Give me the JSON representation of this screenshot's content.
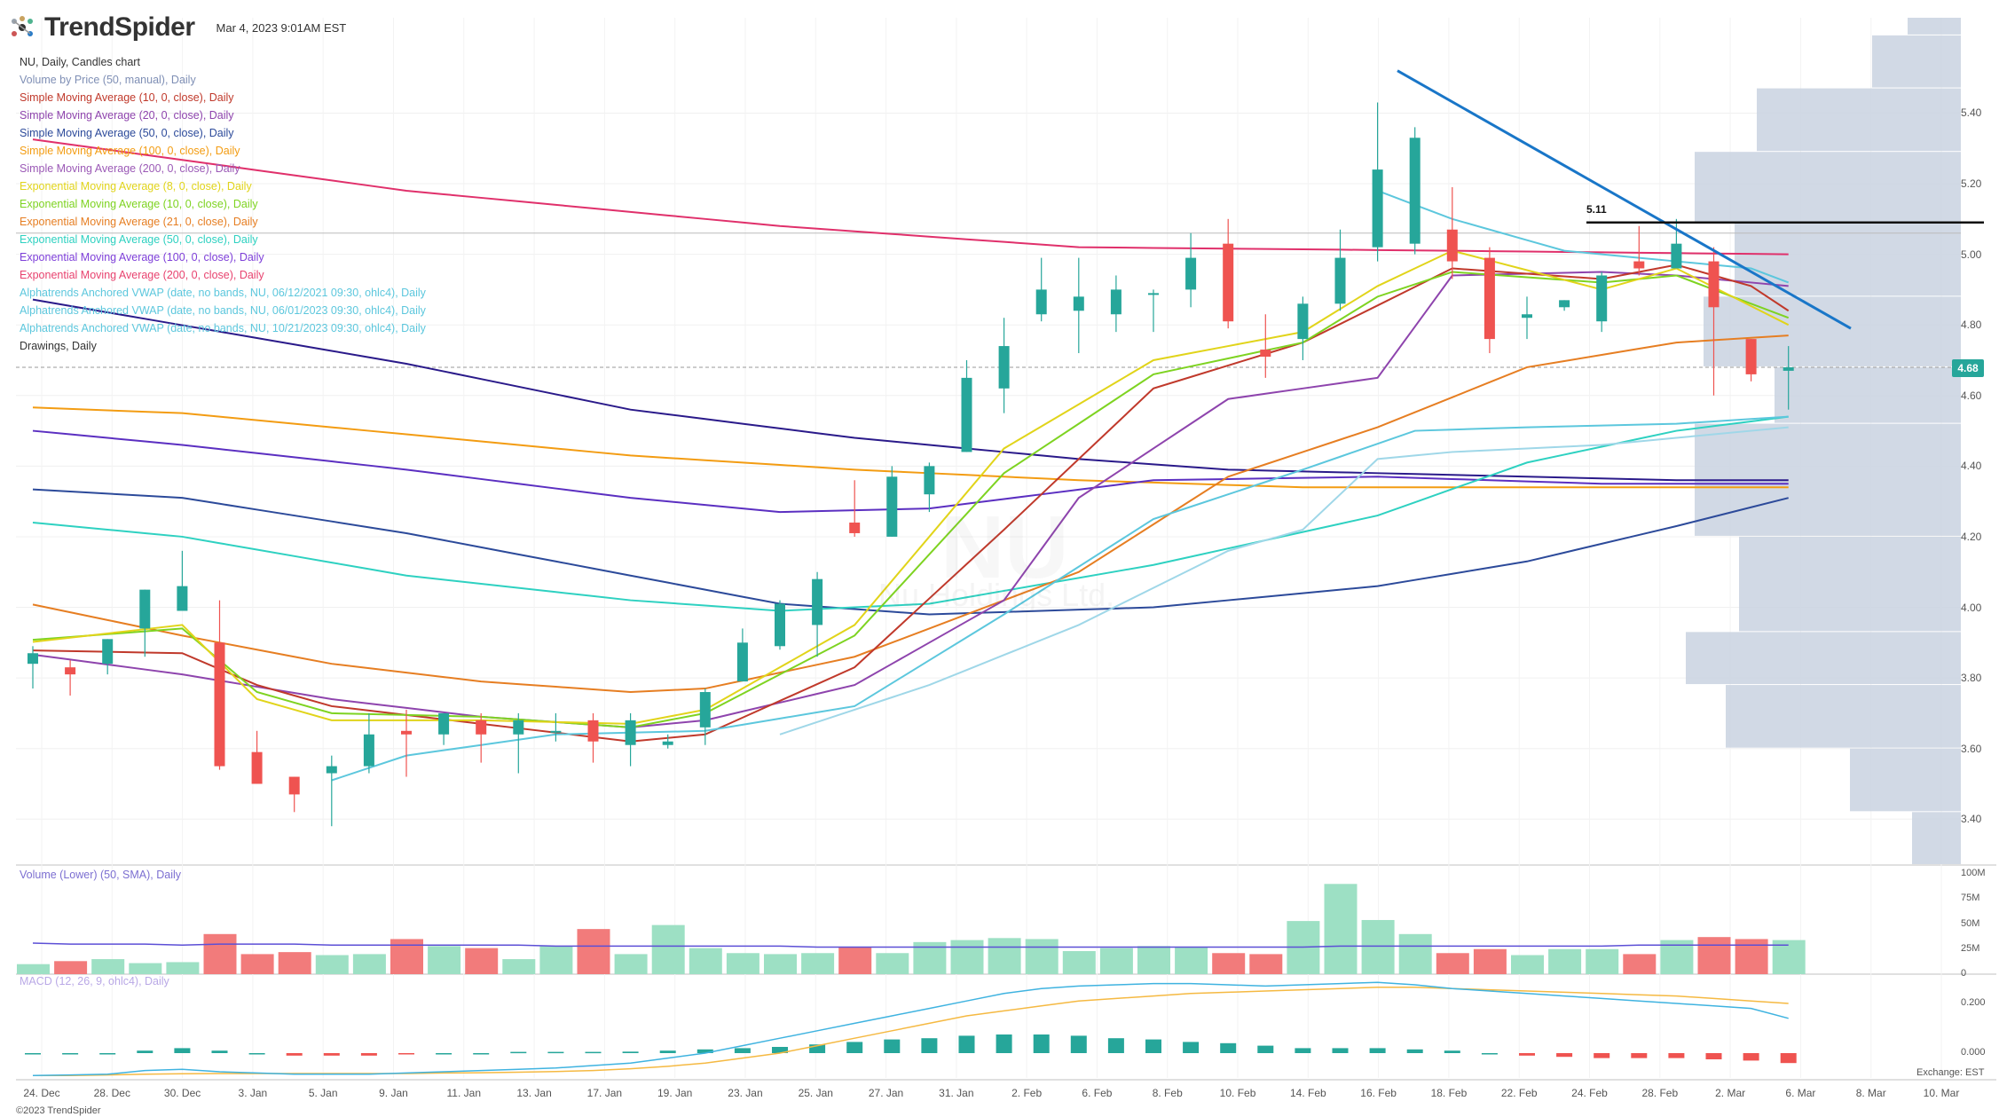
{
  "header": {
    "brand": "TrendSpider",
    "date": "Mar 4, 2023 9:01AM EST"
  },
  "legend": [
    {
      "label": "NU, Daily, Candles chart",
      "color": "#333333"
    },
    {
      "label": "Volume by Price (50, manual), Daily",
      "color": "#7f8fb5"
    },
    {
      "label": "Simple Moving Average (10, 0, close), Daily",
      "color": "#c0392b"
    },
    {
      "label": "Simple Moving Average (20, 0, close), Daily",
      "color": "#8e44ad"
    },
    {
      "label": "Simple Moving Average (50, 0, close), Daily",
      "color": "#2c4a9a"
    },
    {
      "label": "Simple Moving Average (100, 0, close), Daily",
      "color": "#f39c12"
    },
    {
      "label": "Simple Moving Average (200, 0, close), Daily",
      "color": "#9b59b6"
    },
    {
      "label": "Exponential Moving Average (8, 0, close), Daily",
      "color": "#e1d41a"
    },
    {
      "label": "Exponential Moving Average (10, 0, close), Daily",
      "color": "#7ed321"
    },
    {
      "label": "Exponential Moving Average (21, 0, close), Daily",
      "color": "#e67e22"
    },
    {
      "label": "Exponential Moving Average (50, 0, close), Daily",
      "color": "#2ed1c1"
    },
    {
      "label": "Exponential Moving Average (100, 0, close), Daily",
      "color": "#7e3fd9"
    },
    {
      "label": "Exponential Moving Average (200, 0, close), Daily",
      "color": "#e8436f"
    },
    {
      "label": "Alphatrends Anchored VWAP (date, no bands, NU, 06/12/2021 09:30, ohlc4), Daily",
      "color": "#5cc7dd"
    },
    {
      "label": "Alphatrends Anchored VWAP (date, no bands, NU, 06/01/2023 09:30, ohlc4), Daily",
      "color": "#5cc7dd"
    },
    {
      "label": "Alphatrends Anchored VWAP (date, no bands, NU, 10/21/2023 09:30, ohlc4), Daily",
      "color": "#5cc7dd"
    },
    {
      "label": "Drawings, Daily",
      "color": "#333333"
    }
  ],
  "panels": {
    "volume_label": "Volume (Lower) (50, SMA), Daily",
    "macd_label": "MACD (12, 26, 9, ohlc4), Daily"
  },
  "footer": "©2023 TrendSpider",
  "exchange_label": "Exchange: EST",
  "watermark": {
    "ticker": "NU",
    "company": "Nu Holdings Ltd."
  },
  "last_price_label": "4.68",
  "level_label": "5.11",
  "colors": {
    "up": "#26a69a",
    "down": "#ef5350",
    "up_vol": "#9de0c4",
    "down_vol": "#f27b7b",
    "trendline": "#1976c8",
    "vbp": "#c9d2e0"
  },
  "chart_data": {
    "type": "candlestick",
    "symbol": "NU",
    "timeframe": "Daily",
    "ylim": [
      3.27,
      5.67
    ],
    "y_ticks": [
      "5.40",
      "5.20",
      "5.00",
      "4.80",
      "4.60",
      "4.40",
      "4.20",
      "4.00",
      "3.80",
      "3.60",
      "3.40"
    ],
    "x_ticks": [
      "24. Dec",
      "28. Dec",
      "30. Dec",
      "3. Jan",
      "5. Jan",
      "9. Jan",
      "11. Jan",
      "13. Jan",
      "17. Jan",
      "19. Jan",
      "23. Jan",
      "25. Jan",
      "27. Jan",
      "31. Jan",
      "2. Feb",
      "6. Feb",
      "8. Feb",
      "10. Feb",
      "14. Feb",
      "16. Feb",
      "18. Feb",
      "22. Feb",
      "24. Feb",
      "28. Feb",
      "2. Mar",
      "6. Mar",
      "8. Mar",
      "10. Mar"
    ],
    "candles": [
      {
        "o": 3.84,
        "h": 3.89,
        "l": 3.77,
        "c": 3.87
      },
      {
        "o": 3.83,
        "h": 3.85,
        "l": 3.75,
        "c": 3.81
      },
      {
        "o": 3.84,
        "h": 3.91,
        "l": 3.81,
        "c": 3.91
      },
      {
        "o": 3.94,
        "h": 4.05,
        "l": 3.86,
        "c": 4.05
      },
      {
        "o": 3.99,
        "h": 4.16,
        "l": 3.99,
        "c": 4.06
      },
      {
        "o": 3.9,
        "h": 4.02,
        "l": 3.54,
        "c": 3.55
      },
      {
        "o": 3.59,
        "h": 3.65,
        "l": 3.5,
        "c": 3.5
      },
      {
        "o": 3.52,
        "h": 3.52,
        "l": 3.42,
        "c": 3.47
      },
      {
        "o": 3.53,
        "h": 3.58,
        "l": 3.38,
        "c": 3.55
      },
      {
        "o": 3.55,
        "h": 3.7,
        "l": 3.53,
        "c": 3.64
      },
      {
        "o": 3.65,
        "h": 3.71,
        "l": 3.52,
        "c": 3.64
      },
      {
        "o": 3.64,
        "h": 3.7,
        "l": 3.61,
        "c": 3.7
      },
      {
        "o": 3.68,
        "h": 3.7,
        "l": 3.56,
        "c": 3.64
      },
      {
        "o": 3.64,
        "h": 3.7,
        "l": 3.53,
        "c": 3.68
      },
      {
        "o": 3.65,
        "h": 3.7,
        "l": 3.62,
        "c": 3.65
      },
      {
        "o": 3.68,
        "h": 3.7,
        "l": 3.56,
        "c": 3.62
      },
      {
        "o": 3.61,
        "h": 3.7,
        "l": 3.55,
        "c": 3.68
      },
      {
        "o": 3.61,
        "h": 3.64,
        "l": 3.6,
        "c": 3.62
      },
      {
        "o": 3.66,
        "h": 3.77,
        "l": 3.61,
        "c": 3.76
      },
      {
        "o": 3.79,
        "h": 3.94,
        "l": 3.79,
        "c": 3.9
      },
      {
        "o": 3.89,
        "h": 4.02,
        "l": 3.88,
        "c": 4.01
      },
      {
        "o": 3.95,
        "h": 4.1,
        "l": 3.86,
        "c": 4.08
      },
      {
        "o": 4.24,
        "h": 4.36,
        "l": 4.2,
        "c": 4.21
      },
      {
        "o": 4.2,
        "h": 4.4,
        "l": 4.2,
        "c": 4.37
      },
      {
        "o": 4.32,
        "h": 4.41,
        "l": 4.27,
        "c": 4.4
      },
      {
        "o": 4.44,
        "h": 4.7,
        "l": 4.44,
        "c": 4.65
      },
      {
        "o": 4.62,
        "h": 4.82,
        "l": 4.55,
        "c": 4.74
      },
      {
        "o": 4.83,
        "h": 4.99,
        "l": 4.81,
        "c": 4.9
      },
      {
        "o": 4.84,
        "h": 4.99,
        "l": 4.72,
        "c": 4.88
      },
      {
        "o": 4.83,
        "h": 4.94,
        "l": 4.78,
        "c": 4.9
      },
      {
        "o": 4.89,
        "h": 4.9,
        "l": 4.78,
        "c": 4.89
      },
      {
        "o": 4.9,
        "h": 5.06,
        "l": 4.85,
        "c": 4.99
      },
      {
        "o": 5.03,
        "h": 5.1,
        "l": 4.79,
        "c": 4.81
      },
      {
        "o": 4.73,
        "h": 4.83,
        "l": 4.65,
        "c": 4.71
      },
      {
        "o": 4.76,
        "h": 4.88,
        "l": 4.7,
        "c": 4.86
      },
      {
        "o": 4.86,
        "h": 5.07,
        "l": 4.84,
        "c": 4.99
      },
      {
        "o": 5.02,
        "h": 5.43,
        "l": 4.98,
        "c": 5.24
      },
      {
        "o": 5.03,
        "h": 5.36,
        "l": 5.0,
        "c": 5.33
      },
      {
        "o": 5.07,
        "h": 5.19,
        "l": 4.93,
        "c": 4.98
      },
      {
        "o": 4.99,
        "h": 5.02,
        "l": 4.72,
        "c": 4.76
      },
      {
        "o": 4.82,
        "h": 4.88,
        "l": 4.76,
        "c": 4.83
      },
      {
        "o": 4.85,
        "h": 4.87,
        "l": 4.84,
        "c": 4.87
      },
      {
        "o": 4.81,
        "h": 4.95,
        "l": 4.78,
        "c": 4.94
      },
      {
        "o": 4.98,
        "h": 5.08,
        "l": 4.94,
        "c": 4.96
      },
      {
        "o": 4.96,
        "h": 5.1,
        "l": 4.96,
        "c": 5.03
      },
      {
        "o": 4.98,
        "h": 5.02,
        "l": 4.6,
        "c": 4.85
      },
      {
        "o": 4.76,
        "h": 4.76,
        "l": 4.64,
        "c": 4.66
      },
      {
        "o": 4.67,
        "h": 4.74,
        "l": 4.56,
        "c": 4.68
      }
    ],
    "volume_ticks": [
      "100M",
      "75M",
      "50M",
      "25M",
      "0"
    ],
    "volume_ylim": [
      0,
      100
    ],
    "volume_millions": [
      10,
      13,
      15,
      11,
      12,
      40,
      20,
      22,
      19,
      20,
      35,
      28,
      26,
      15,
      28,
      45,
      20,
      49,
      26,
      21,
      20,
      21,
      27,
      21,
      32,
      34,
      36,
      35,
      23,
      26,
      28,
      27,
      21,
      20,
      53,
      90,
      54,
      40,
      21,
      25,
      19,
      25,
      25,
      20,
      34,
      37,
      35,
      34
    ],
    "volume_sma": [
      31,
      30,
      30,
      30,
      29,
      30,
      30,
      30,
      29,
      29,
      29,
      29,
      29,
      29,
      28,
      28,
      28,
      28,
      28,
      28,
      28,
      27,
      27,
      27,
      27,
      27,
      27,
      27,
      27,
      27,
      27,
      27,
      27,
      27,
      27,
      28,
      28,
      28,
      28,
      28,
      28,
      28,
      28,
      29,
      29,
      29,
      29,
      29
    ],
    "macd_ticks": [
      "0.200",
      "0.000"
    ],
    "macd_ylim": [
      -0.1,
      0.3
    ],
    "macd_hist": [
      0.0,
      0.0,
      0.0,
      0.01,
      0.02,
      0.01,
      0.0,
      -0.01,
      -0.01,
      -0.01,
      -0.005,
      0.0,
      0.0,
      0.005,
      0.005,
      0.005,
      0.006,
      0.01,
      0.015,
      0.02,
      0.025,
      0.035,
      0.045,
      0.055,
      0.06,
      0.07,
      0.075,
      0.075,
      0.07,
      0.06,
      0.055,
      0.045,
      0.04,
      0.03,
      0.02,
      0.02,
      0.02,
      0.015,
      0.01,
      0.0,
      -0.01,
      -0.015,
      -0.02,
      -0.02,
      -0.02,
      -0.025,
      -0.03,
      -0.04
    ],
    "macd_line": [
      -0.09,
      -0.088,
      -0.085,
      -0.07,
      -0.065,
      -0.075,
      -0.08,
      -0.085,
      -0.085,
      -0.085,
      -0.08,
      -0.075,
      -0.07,
      -0.065,
      -0.06,
      -0.05,
      -0.04,
      -0.02,
      0.0,
      0.03,
      0.06,
      0.09,
      0.12,
      0.15,
      0.18,
      0.21,
      0.24,
      0.26,
      0.27,
      0.275,
      0.28,
      0.28,
      0.275,
      0.27,
      0.275,
      0.28,
      0.285,
      0.275,
      0.26,
      0.25,
      0.24,
      0.23,
      0.22,
      0.21,
      0.2,
      0.19,
      0.18,
      0.14
    ],
    "signal_line": [
      -0.09,
      -0.09,
      -0.088,
      -0.085,
      -0.083,
      -0.082,
      -0.082,
      -0.082,
      -0.082,
      -0.082,
      -0.082,
      -0.08,
      -0.079,
      -0.077,
      -0.074,
      -0.07,
      -0.063,
      -0.053,
      -0.04,
      -0.02,
      0.0,
      0.03,
      0.06,
      0.09,
      0.12,
      0.15,
      0.17,
      0.19,
      0.21,
      0.22,
      0.23,
      0.24,
      0.245,
      0.25,
      0.255,
      0.26,
      0.265,
      0.265,
      0.26,
      0.255,
      0.25,
      0.245,
      0.24,
      0.235,
      0.23,
      0.22,
      0.21,
      0.2
    ]
  }
}
